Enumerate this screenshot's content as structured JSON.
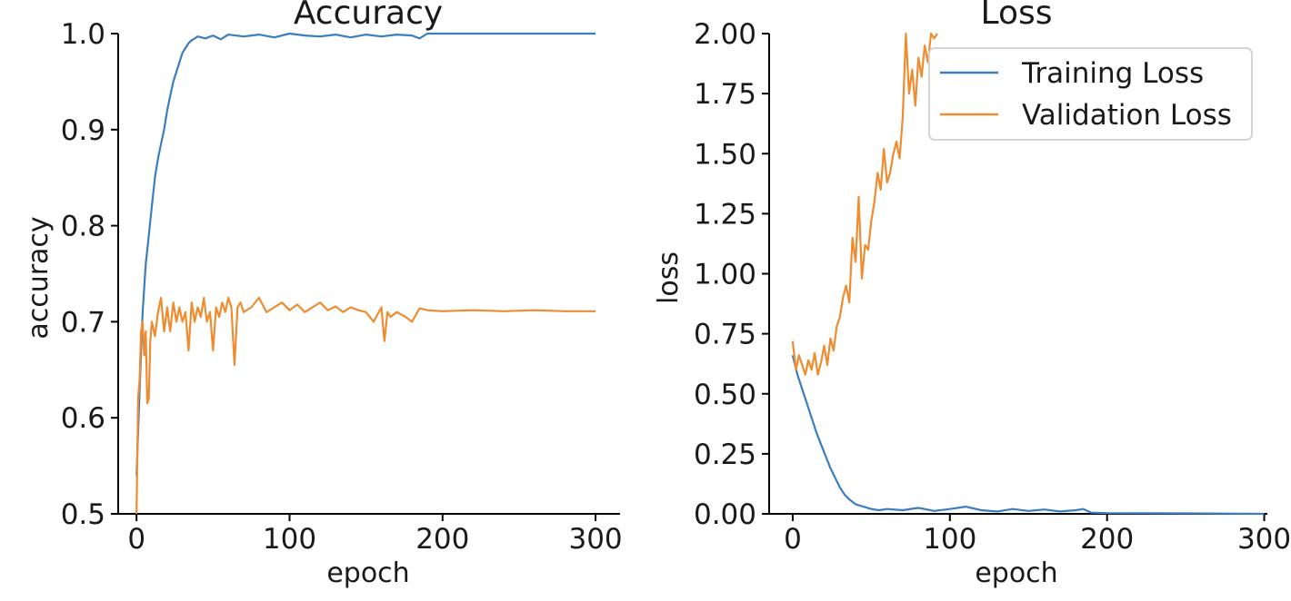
{
  "chart_data": [
    {
      "type": "line",
      "title": "Accuracy",
      "xlabel": "epoch",
      "ylabel": "accuracy",
      "xlim": [
        -12,
        316
      ],
      "ylim": [
        0.5,
        1.0
      ],
      "x_ticks": [
        0,
        100,
        200,
        300
      ],
      "x_tick_labels": [
        "0",
        "100",
        "200",
        "300"
      ],
      "y_ticks": [
        0.5,
        0.6,
        0.7,
        0.8,
        0.9,
        1.0
      ],
      "y_tick_labels": [
        "0.5",
        "0.6",
        "0.7",
        "0.8",
        "0.9",
        "1.0"
      ],
      "grid": false,
      "legend": null,
      "series": [
        {
          "color": "#3b7dbf",
          "x": [
            0,
            2,
            4,
            6,
            8,
            10,
            12,
            14,
            16,
            18,
            20,
            22,
            24,
            26,
            28,
            30,
            32,
            34,
            36,
            38,
            40,
            45,
            50,
            55,
            60,
            70,
            80,
            90,
            100,
            110,
            120,
            130,
            140,
            150,
            160,
            170,
            180,
            185,
            190,
            200,
            250,
            300
          ],
          "values": [
            0.54,
            0.63,
            0.71,
            0.76,
            0.79,
            0.82,
            0.85,
            0.87,
            0.885,
            0.9,
            0.92,
            0.935,
            0.95,
            0.96,
            0.97,
            0.98,
            0.985,
            0.99,
            0.993,
            0.995,
            0.997,
            0.995,
            0.998,
            0.994,
            0.999,
            0.997,
            0.999,
            0.996,
            1.0,
            0.998,
            0.997,
            0.999,
            0.996,
            0.999,
            0.997,
            0.999,
            0.998,
            0.995,
            1.0,
            1.0,
            1.0,
            1.0
          ]
        },
        {
          "color": "#f08c30",
          "x": [
            0,
            1,
            2,
            3,
            4,
            5,
            6,
            7,
            8,
            9,
            10,
            12,
            14,
            16,
            18,
            20,
            22,
            24,
            26,
            28,
            30,
            32,
            34,
            36,
            38,
            40,
            42,
            44,
            46,
            48,
            50,
            52,
            54,
            56,
            58,
            60,
            62,
            64,
            66,
            68,
            70,
            75,
            80,
            85,
            90,
            95,
            100,
            105,
            110,
            115,
            120,
            125,
            130,
            135,
            140,
            145,
            150,
            155,
            160,
            162,
            164,
            166,
            170,
            175,
            180,
            185,
            190,
            200,
            220,
            240,
            260,
            280,
            300
          ],
          "values": [
            0.5,
            0.62,
            0.64,
            0.69,
            0.7,
            0.665,
            0.69,
            0.615,
            0.62,
            0.68,
            0.7,
            0.685,
            0.71,
            0.725,
            0.69,
            0.715,
            0.69,
            0.72,
            0.7,
            0.715,
            0.7,
            0.71,
            0.67,
            0.72,
            0.7,
            0.715,
            0.705,
            0.725,
            0.7,
            0.71,
            0.67,
            0.715,
            0.705,
            0.72,
            0.71,
            0.725,
            0.715,
            0.655,
            0.715,
            0.72,
            0.71,
            0.715,
            0.725,
            0.71,
            0.715,
            0.72,
            0.712,
            0.718,
            0.71,
            0.715,
            0.72,
            0.712,
            0.716,
            0.71,
            0.715,
            0.712,
            0.71,
            0.7,
            0.715,
            0.68,
            0.71,
            0.705,
            0.71,
            0.706,
            0.7,
            0.714,
            0.712,
            0.711,
            0.712,
            0.711,
            0.712,
            0.711,
            0.711
          ]
        }
      ]
    },
    {
      "type": "line",
      "title": "Loss",
      "xlabel": "epoch",
      "ylabel": "loss",
      "xlim": [
        -15,
        302
      ],
      "ylim": [
        0.0,
        2.0
      ],
      "x_ticks": [
        0,
        100,
        200,
        300
      ],
      "x_tick_labels": [
        "0",
        "100",
        "200",
        "300"
      ],
      "y_ticks": [
        0.0,
        0.25,
        0.5,
        0.75,
        1.0,
        1.25,
        1.5,
        1.75,
        2.0
      ],
      "y_tick_labels": [
        "0.00",
        "0.25",
        "0.50",
        "0.75",
        "1.00",
        "1.25",
        "1.50",
        "1.75",
        "2.00"
      ],
      "grid": false,
      "legend": "top-right",
      "series": [
        {
          "name": "Training Loss",
          "color": "#3b7dbf",
          "x": [
            0,
            3,
            6,
            9,
            12,
            15,
            18,
            21,
            24,
            27,
            30,
            33,
            36,
            40,
            45,
            50,
            55,
            60,
            70,
            80,
            90,
            100,
            110,
            120,
            130,
            140,
            150,
            160,
            170,
            180,
            185,
            190,
            200,
            250,
            300
          ],
          "values": [
            0.66,
            0.58,
            0.52,
            0.46,
            0.4,
            0.34,
            0.29,
            0.24,
            0.19,
            0.15,
            0.11,
            0.08,
            0.06,
            0.04,
            0.03,
            0.02,
            0.015,
            0.02,
            0.015,
            0.025,
            0.012,
            0.02,
            0.03,
            0.015,
            0.01,
            0.02,
            0.012,
            0.018,
            0.01,
            0.015,
            0.02,
            0.005,
            0.003,
            0.002,
            0.0
          ]
        },
        {
          "name": "Validation Loss",
          "color": "#f08c30",
          "x": [
            0,
            2,
            4,
            6,
            8,
            10,
            12,
            14,
            16,
            18,
            20,
            22,
            24,
            26,
            28,
            30,
            32,
            34,
            36,
            38,
            40,
            42,
            44,
            46,
            48,
            50,
            52,
            54,
            56,
            58,
            60,
            62,
            64,
            66,
            68,
            70,
            72,
            74,
            76,
            78,
            80,
            82,
            84,
            86,
            88,
            90,
            92
          ],
          "values": [
            0.72,
            0.6,
            0.66,
            0.62,
            0.58,
            0.64,
            0.6,
            0.67,
            0.58,
            0.63,
            0.7,
            0.62,
            0.73,
            0.68,
            0.78,
            0.82,
            0.9,
            0.95,
            0.88,
            1.15,
            1.05,
            1.32,
            0.98,
            1.12,
            1.1,
            1.22,
            1.3,
            1.42,
            1.35,
            1.52,
            1.38,
            1.42,
            1.5,
            1.55,
            1.48,
            1.65,
            2.0,
            1.75,
            1.85,
            1.7,
            1.9,
            1.82,
            1.95,
            1.88,
            2.0,
            1.98,
            2.0
          ]
        }
      ]
    }
  ]
}
